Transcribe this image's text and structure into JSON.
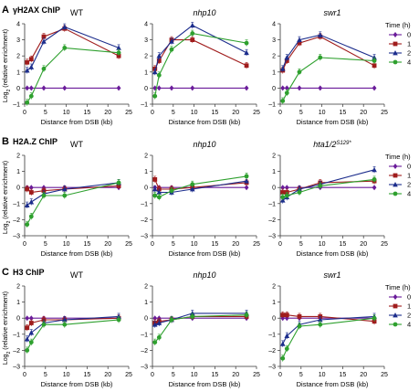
{
  "figure": {
    "legend_title": "Time (h)",
    "legend_entries": [
      {
        "label": "0",
        "color": "#6a1b9a",
        "marker": "diamond"
      },
      {
        "label": "1",
        "color": "#a01c1c",
        "marker": "square"
      },
      {
        "label": "2",
        "color": "#1c2d8c",
        "marker": "triangle"
      },
      {
        "label": "4",
        "color": "#2ea02e",
        "marker": "circle"
      }
    ]
  },
  "chart_data": [
    {
      "type": "line",
      "panel_letter": "A",
      "row_title": "γH2AX ChIP",
      "ylabel": "Log2 (relative enrichment)",
      "xlabel": "Distance from DSB (kb)",
      "x_ticks": [
        0,
        5,
        10,
        15,
        20,
        25
      ],
      "y_ticks": [
        -1,
        0,
        1,
        2,
        3,
        4
      ],
      "xlim": [
        0,
        25
      ],
      "ylim": [
        -1,
        4
      ],
      "panels": [
        {
          "title": "WT",
          "italic": false,
          "series": [
            {
              "name": "0",
              "x": [
                0.6,
                1.6,
                4.6,
                9.6,
                22.6
              ],
              "y": [
                0,
                0,
                0,
                0,
                0
              ]
            },
            {
              "name": "1",
              "x": [
                0.6,
                1.6,
                4.6,
                9.6,
                22.6
              ],
              "y": [
                1.6,
                1.8,
                3.2,
                3.7,
                2.0
              ]
            },
            {
              "name": "2",
              "x": [
                0.6,
                1.6,
                4.6,
                9.6,
                22.6
              ],
              "y": [
                1.1,
                1.3,
                2.9,
                3.8,
                2.5
              ]
            },
            {
              "name": "4",
              "x": [
                0.6,
                1.6,
                4.6,
                9.6,
                22.6
              ],
              "y": [
                -0.9,
                -0.5,
                1.2,
                2.5,
                2.2
              ]
            }
          ]
        },
        {
          "title": "nhp10",
          "italic": true,
          "series": [
            {
              "name": "0",
              "x": [
                0.6,
                1.6,
                4.6,
                9.6,
                22.6
              ],
              "y": [
                0,
                0,
                0,
                0,
                0
              ]
            },
            {
              "name": "1",
              "x": [
                0.6,
                1.6,
                4.6,
                9.6,
                22.6
              ],
              "y": [
                1.2,
                1.7,
                3.0,
                3.0,
                1.4
              ]
            },
            {
              "name": "2",
              "x": [
                0.6,
                1.6,
                4.6,
                9.6,
                22.6
              ],
              "y": [
                1.0,
                2.0,
                2.9,
                3.9,
                2.2
              ]
            },
            {
              "name": "4",
              "x": [
                0.6,
                1.6,
                4.6,
                9.6,
                22.6
              ],
              "y": [
                -0.5,
                0.8,
                2.4,
                3.4,
                2.8
              ]
            }
          ]
        },
        {
          "title": "swr1",
          "italic": true,
          "series": [
            {
              "name": "0",
              "x": [
                0.6,
                1.6,
                4.6,
                9.6,
                22.6
              ],
              "y": [
                0,
                0,
                0,
                0,
                0
              ]
            },
            {
              "name": "1",
              "x": [
                0.6,
                1.6,
                4.6,
                9.6,
                22.6
              ],
              "y": [
                1.1,
                1.7,
                2.8,
                3.2,
                1.4
              ]
            },
            {
              "name": "2",
              "x": [
                0.6,
                1.6,
                4.6,
                9.6,
                22.6
              ],
              "y": [
                1.2,
                1.9,
                3.0,
                3.3,
                1.9
              ]
            },
            {
              "name": "4",
              "x": [
                0.6,
                1.6,
                4.6,
                9.6,
                22.6
              ],
              "y": [
                -0.8,
                -0.3,
                1.0,
                1.9,
                1.7
              ]
            }
          ]
        }
      ]
    },
    {
      "type": "line",
      "panel_letter": "B",
      "row_title": "H2A.Z ChIP",
      "ylabel": "Log2 (relative enrichment)",
      "xlabel": "Distance from DSB (kb)",
      "x_ticks": [
        0,
        5,
        10,
        15,
        20,
        25
      ],
      "y_ticks": [
        -3,
        -2,
        -1,
        0,
        1,
        2
      ],
      "xlim": [
        0,
        25
      ],
      "ylim": [
        -3,
        2
      ],
      "panels": [
        {
          "title": "WT",
          "italic": false,
          "series": [
            {
              "name": "0",
              "x": [
                0.6,
                1.6,
                4.6,
                9.6,
                22.6
              ],
              "y": [
                0,
                0,
                0,
                0,
                0
              ]
            },
            {
              "name": "1",
              "x": [
                0.6,
                1.6,
                4.6,
                9.6,
                22.6
              ],
              "y": [
                -0.1,
                -0.3,
                -0.2,
                -0.1,
                0.1
              ]
            },
            {
              "name": "2",
              "x": [
                0.6,
                1.6,
                4.6,
                9.6,
                22.6
              ],
              "y": [
                -1.1,
                -0.9,
                -0.4,
                -0.1,
                0.3
              ]
            },
            {
              "name": "4",
              "x": [
                0.6,
                1.6,
                4.6,
                9.6,
                22.6
              ],
              "y": [
                -2.3,
                -1.8,
                -0.5,
                -0.5,
                0.3
              ]
            }
          ]
        },
        {
          "title": "nhp10",
          "italic": true,
          "series": [
            {
              "name": "0",
              "x": [
                0.6,
                1.6,
                4.6,
                9.6,
                22.6
              ],
              "y": [
                0,
                0,
                0,
                0,
                0
              ]
            },
            {
              "name": "1",
              "x": [
                0.6,
                1.6,
                4.6,
                9.6,
                22.6
              ],
              "y": [
                0.5,
                -0.1,
                -0.1,
                0.0,
                0.3
              ]
            },
            {
              "name": "2",
              "x": [
                0.6,
                1.6,
                4.6,
                9.6,
                22.6
              ],
              "y": [
                -0.1,
                -0.3,
                -0.3,
                -0.1,
                0.4
              ]
            },
            {
              "name": "4",
              "x": [
                0.6,
                1.6,
                4.6,
                9.6,
                22.6
              ],
              "y": [
                -0.5,
                -0.6,
                -0.2,
                0.2,
                0.7
              ]
            }
          ]
        },
        {
          "title": "hta1/2",
          "title_sup": "S129*",
          "italic": true,
          "series": [
            {
              "name": "0",
              "x": [
                0.6,
                1.6,
                4.6,
                9.6,
                22.6
              ],
              "y": [
                0,
                0,
                0,
                0,
                0
              ]
            },
            {
              "name": "1",
              "x": [
                0.6,
                1.6,
                4.6,
                9.6,
                22.6
              ],
              "y": [
                -0.3,
                -0.3,
                -0.1,
                0.3,
                0.4
              ]
            },
            {
              "name": "2",
              "x": [
                0.6,
                1.6,
                4.6,
                9.6,
                22.6
              ],
              "y": [
                -0.8,
                -0.6,
                -0.1,
                0.2,
                1.1
              ]
            },
            {
              "name": "4",
              "x": [
                0.6,
                1.6,
                4.6,
                9.6,
                22.6
              ],
              "y": [
                -0.6,
                -0.5,
                -0.3,
                0.1,
                0.5
              ]
            }
          ]
        }
      ]
    },
    {
      "type": "line",
      "panel_letter": "C",
      "row_title": "H3 ChIP",
      "ylabel": "Log2 (relative enrichment)",
      "xlabel": "Distance from DSB (kb)",
      "x_ticks": [
        0,
        5,
        10,
        15,
        20,
        25
      ],
      "y_ticks": [
        -3,
        -2,
        -1,
        0,
        1,
        2
      ],
      "xlim": [
        0,
        25
      ],
      "ylim": [
        -3,
        2
      ],
      "panels": [
        {
          "title": "WT",
          "italic": false,
          "series": [
            {
              "name": "0",
              "x": [
                0.6,
                1.6,
                4.6,
                9.6,
                22.6
              ],
              "y": [
                0,
                0,
                0,
                0,
                0
              ]
            },
            {
              "name": "1",
              "x": [
                0.6,
                1.6,
                4.6,
                9.6,
                22.6
              ],
              "y": [
                -0.6,
                -0.3,
                -0.1,
                -0.1,
                0.0
              ]
            },
            {
              "name": "2",
              "x": [
                0.6,
                1.6,
                4.6,
                9.6,
                22.6
              ],
              "y": [
                -1.3,
                -0.9,
                -0.3,
                -0.1,
                0.1
              ]
            },
            {
              "name": "4",
              "x": [
                0.6,
                1.6,
                4.6,
                9.6,
                22.6
              ],
              "y": [
                -2.0,
                -1.5,
                -0.4,
                -0.4,
                -0.1
              ]
            }
          ]
        },
        {
          "title": "nhp10",
          "italic": true,
          "series": [
            {
              "name": "0",
              "x": [
                0.6,
                1.6,
                4.6,
                9.6,
                22.6
              ],
              "y": [
                0,
                0,
                0,
                0,
                0
              ]
            },
            {
              "name": "1",
              "x": [
                0.6,
                1.6,
                4.6,
                9.6,
                22.6
              ],
              "y": [
                -0.3,
                -0.2,
                -0.1,
                0.1,
                0.1
              ]
            },
            {
              "name": "2",
              "x": [
                0.6,
                1.6,
                4.6,
                9.6,
                22.6
              ],
              "y": [
                -0.4,
                -0.3,
                -0.1,
                0.3,
                0.3
              ]
            },
            {
              "name": "4",
              "x": [
                0.6,
                1.6,
                4.6,
                9.6,
                22.6
              ],
              "y": [
                -1.5,
                -1.2,
                -0.1,
                0.1,
                0.2
              ]
            }
          ]
        },
        {
          "title": "swr1",
          "italic": true,
          "series": [
            {
              "name": "0",
              "x": [
                0.6,
                1.6,
                4.6,
                9.6,
                22.6
              ],
              "y": [
                0,
                0,
                0,
                0,
                0
              ]
            },
            {
              "name": "1",
              "x": [
                0.6,
                1.6,
                4.6,
                9.6,
                22.6
              ],
              "y": [
                0.2,
                0.2,
                0.1,
                0.1,
                -0.2
              ]
            },
            {
              "name": "2",
              "x": [
                0.6,
                1.6,
                4.6,
                9.6,
                22.6
              ],
              "y": [
                -1.6,
                -1.1,
                -0.4,
                -0.1,
                0.1
              ]
            },
            {
              "name": "4",
              "x": [
                0.6,
                1.6,
                4.6,
                9.6,
                22.6
              ],
              "y": [
                -2.5,
                -1.9,
                -0.5,
                -0.4,
                0.0
              ]
            }
          ]
        }
      ]
    }
  ]
}
